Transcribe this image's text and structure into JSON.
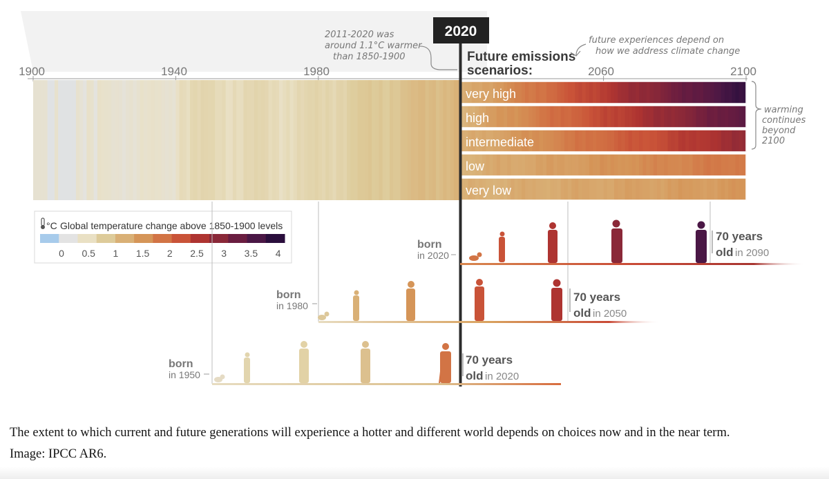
{
  "figure": {
    "callout_2020": "2020",
    "note_warmer": [
      "2011-2020 was",
      "around 1.1°C warmer",
      "than 1850-1900"
    ],
    "future_title": [
      "Future emissions",
      "scenarios:"
    ],
    "note_future": [
      "future experiences depend on",
      "how we address climate change"
    ],
    "note_beyond": [
      "warming",
      "continues",
      "beyond",
      "2100"
    ],
    "legend_title": "Global temperature change above 1850-1900 levels"
  },
  "chart_data": {
    "type": "heatmap",
    "title": "",
    "x_ticks": [
      "1900",
      "1940",
      "1980",
      "2060",
      "2100"
    ],
    "x_range": [
      1900,
      2100
    ],
    "observed_range": [
      1900,
      2020
    ],
    "scenarios": [
      {
        "name": "very high",
        "warming_2100": 4.0
      },
      {
        "name": "high",
        "warming_2100": 3.6
      },
      {
        "name": "intermediate",
        "warming_2100": 2.9
      },
      {
        "name": "low",
        "warming_2100": 1.9
      },
      {
        "name": "very low",
        "warming_2100": 1.5
      }
    ],
    "legend": {
      "ticks": [
        "0",
        "0.5",
        "1",
        "1.5",
        "2",
        "2.5",
        "3",
        "3.5",
        "4"
      ],
      "colors": [
        "#a7cbeb",
        "#e3e3e3",
        "#e9e0c4",
        "#ddcb9a",
        "#d9b076",
        "#d59558",
        "#d27445",
        "#c95338",
        "#ae3431",
        "#8a2838",
        "#6a1d40",
        "#4a1745",
        "#2a0e3c"
      ]
    },
    "generations": [
      {
        "born_label": "born",
        "born_year_label": "in 1950",
        "age_label": "70 years",
        "old_label": "old",
        "old_year_label": "in 2020"
      },
      {
        "born_label": "born",
        "born_year_label": "in 1980",
        "age_label": "70 years",
        "old_label": "old",
        "old_year_label": "in 2050"
      },
      {
        "born_label": "born",
        "born_year_label": "in 2020",
        "age_label": "70 years",
        "old_label": "old",
        "old_year_label": "in 2090"
      }
    ]
  },
  "caption": {
    "line1": "The extent to which current and future generations will experience a hotter and different world depends on choices now and in the near term.",
    "line2": "Image: IPCC AR6."
  }
}
